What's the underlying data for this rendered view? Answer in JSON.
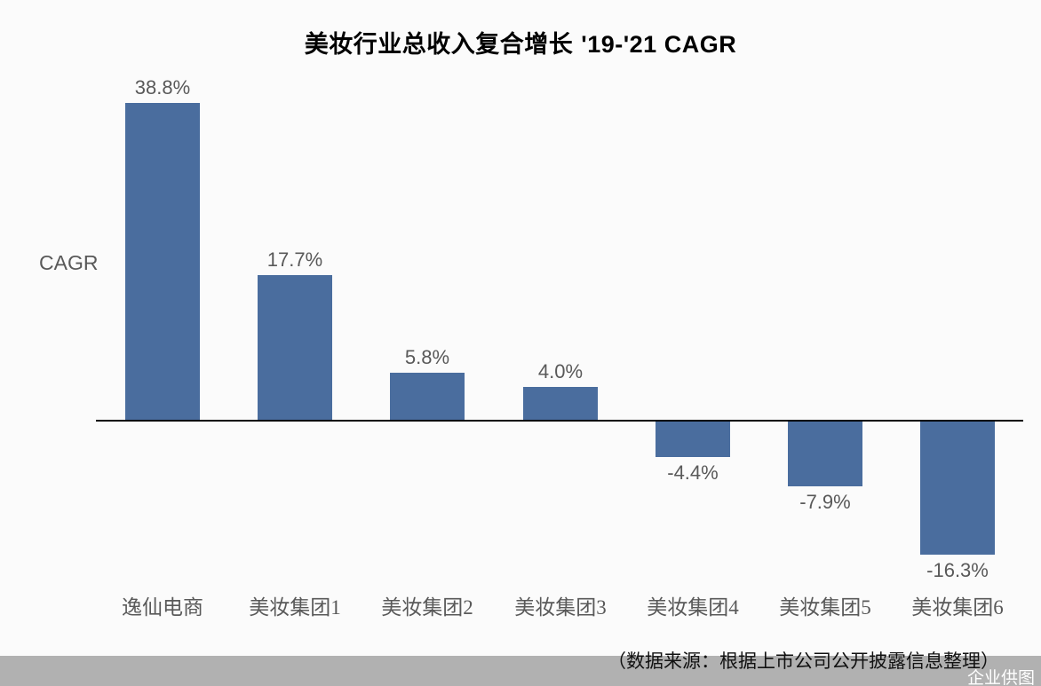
{
  "title": {
    "zh": "美妆行业总收入复合增长",
    "en": "'19-'21 CAGR",
    "full": "美妆行业总收入复合增长 '19-'21 CAGR"
  },
  "axis_label": "CAGR",
  "source_note": "（数据来源：根据上市公司公开披露信息整理）",
  "watermark": "企业供图",
  "colors": {
    "background": "#fbfbfb",
    "bar": "#4a6d9e",
    "value_label": "#595959",
    "category_label": "#595959",
    "axis_line": "#000000",
    "footer_strip": "#b1b1b1",
    "watermark_text": "#ffffff",
    "title_text": "#000000"
  },
  "chart_data": {
    "type": "bar",
    "title": "美妆行业总收入复合增长 '19-'21 CAGR",
    "categories": [
      "逸仙电商",
      "美妆集团1",
      "美妆集团2",
      "美妆集团3",
      "美妆集团4",
      "美妆集团5",
      "美妆集团6"
    ],
    "values": [
      38.8,
      17.7,
      5.8,
      4.0,
      -4.4,
      -7.9,
      -16.3
    ],
    "value_labels": [
      "38.8%",
      "17.7%",
      "5.8%",
      "4.0%",
      "-4.4%",
      "-7.9%",
      "-16.3%"
    ],
    "xlabel": "",
    "ylabel": "CAGR",
    "unit": "%",
    "baseline": 0,
    "ylim": [
      -20,
      45
    ],
    "grid": false,
    "legend": false,
    "bar_color": "#4a6d9e"
  }
}
